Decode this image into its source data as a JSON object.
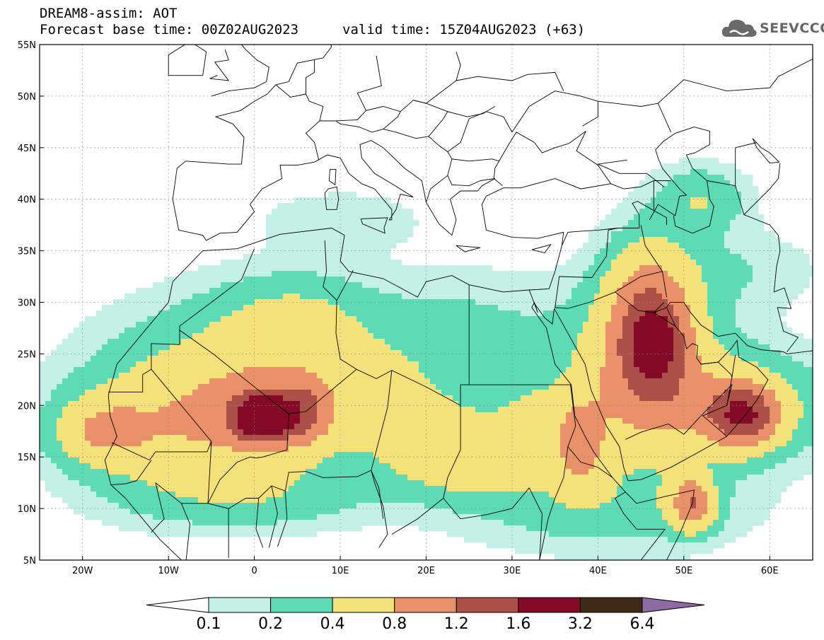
{
  "header": {
    "line1": "DREAM8-assim: AOT",
    "line2": "Forecast base time: 00Z02AUG2023",
    "line2b": "valid time: 15Z04AUG2023 (+63)"
  },
  "logo": {
    "text": "SEEVCCC",
    "icon": "cloud-icon"
  },
  "map": {
    "lon_range": [
      -25,
      65
    ],
    "lat_range": [
      5,
      55
    ],
    "lon_ticks": [
      {
        "v": -20,
        "label": "20W"
      },
      {
        "v": -10,
        "label": "10W"
      },
      {
        "v": 0,
        "label": "0"
      },
      {
        "v": 10,
        "label": "10E"
      },
      {
        "v": 20,
        "label": "20E"
      },
      {
        "v": 30,
        "label": "30E"
      },
      {
        "v": 40,
        "label": "40E"
      },
      {
        "v": 50,
        "label": "50E"
      },
      {
        "v": 60,
        "label": "60E"
      }
    ],
    "lat_ticks": [
      {
        "v": 5,
        "label": "5N"
      },
      {
        "v": 10,
        "label": "10N"
      },
      {
        "v": 15,
        "label": "15N"
      },
      {
        "v": 20,
        "label": "20N"
      },
      {
        "v": 25,
        "label": "25N"
      },
      {
        "v": 30,
        "label": "30N"
      },
      {
        "v": 35,
        "label": "35N"
      },
      {
        "v": 40,
        "label": "40N"
      },
      {
        "v": 45,
        "label": "45N"
      },
      {
        "v": 50,
        "label": "50N"
      },
      {
        "v": 55,
        "label": "55N"
      }
    ],
    "grid": true
  },
  "colorbar": {
    "labels": [
      "0.1",
      "0.2",
      "0.4",
      "0.8",
      "1.2",
      "1.6",
      "3.2",
      "6.4"
    ],
    "colors": [
      "#c4f0e8",
      "#5cdbb4",
      "#f4e17a",
      "#ea9068",
      "#ad5048",
      "#850a28",
      "#3e2a14"
    ],
    "low_color": "#ffffff",
    "high_color": "#8e6aa6"
  },
  "chart_data": {
    "type": "heatmap",
    "variable": "AOT",
    "levels": [
      0.1,
      0.2,
      0.4,
      0.8,
      1.2,
      1.6,
      3.2,
      6.4
    ],
    "xlim": [
      -25,
      65
    ],
    "ylim": [
      5,
      55
    ],
    "blobs": [
      {
        "lon": -10,
        "lat": 18,
        "rx": 11,
        "ry": 6,
        "amp": 0.62
      },
      {
        "lon": -18,
        "lat": 17.5,
        "rx": 5,
        "ry": 3,
        "amp": 0.55
      },
      {
        "lon": 2,
        "lat": 19,
        "rx": 8,
        "ry": 5,
        "amp": 0.7
      },
      {
        "lon": 1,
        "lat": 18.8,
        "rx": 3,
        "ry": 2,
        "amp": 1.6
      },
      {
        "lon": 6,
        "lat": 19.5,
        "rx": 3,
        "ry": 3,
        "amp": 0.6
      },
      {
        "lon": -2,
        "lat": 25,
        "rx": 14,
        "ry": 6,
        "amp": 0.3
      },
      {
        "lon": 5,
        "lat": 29,
        "rx": 9,
        "ry": 4,
        "amp": 0.28
      },
      {
        "lon": 20,
        "lat": 17,
        "rx": 9,
        "ry": 4,
        "amp": 0.45
      },
      {
        "lon": 27,
        "lat": 14,
        "rx": 9,
        "ry": 3,
        "amp": 0.42
      },
      {
        "lon": 15,
        "lat": 23,
        "rx": 12,
        "ry": 5,
        "amp": 0.22
      },
      {
        "lon": 33,
        "lat": 19,
        "rx": 5,
        "ry": 3,
        "amp": 0.3
      },
      {
        "lon": 0,
        "lat": 11,
        "rx": 14,
        "ry": 3,
        "amp": 0.26
      },
      {
        "lon": 46,
        "lat": 28,
        "rx": 5,
        "ry": 7,
        "amp": 1.15
      },
      {
        "lon": 47,
        "lat": 26,
        "rx": 3,
        "ry": 3,
        "amp": 0.5
      },
      {
        "lon": 45,
        "lat": 22,
        "rx": 9,
        "ry": 8,
        "amp": 0.55
      },
      {
        "lon": 57,
        "lat": 19,
        "rx": 4,
        "ry": 3,
        "amp": 1.2
      },
      {
        "lon": 55,
        "lat": 20,
        "rx": 12,
        "ry": 5,
        "amp": 0.5
      },
      {
        "lon": 51,
        "lat": 10.5,
        "rx": 2.5,
        "ry": 2.5,
        "amp": 1.0
      },
      {
        "lon": 38,
        "lat": 16,
        "rx": 3,
        "ry": 4,
        "amp": 0.7
      },
      {
        "lon": 52,
        "lat": 40,
        "rx": 5,
        "ry": 3,
        "amp": 0.35
      },
      {
        "lon": 55,
        "lat": 33,
        "rx": 10,
        "ry": 4,
        "amp": 0.16
      },
      {
        "lon": 40,
        "lat": 10,
        "rx": 16,
        "ry": 4,
        "amp": 0.25
      },
      {
        "lon": 10,
        "lat": 38,
        "rx": 10,
        "ry": 3,
        "amp": 0.12
      },
      {
        "lon": 25,
        "lat": 27,
        "rx": 12,
        "ry": 6,
        "amp": 0.18
      }
    ]
  }
}
